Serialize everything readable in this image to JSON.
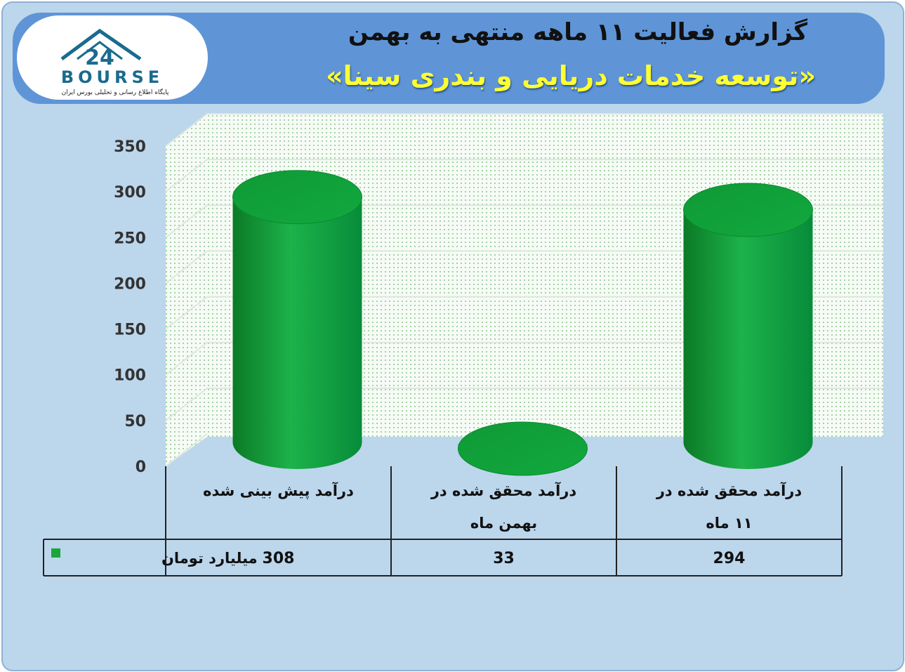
{
  "header": {
    "title_line1": "گزارش فعالیت ۱۱ ماهه منتهی به بهمن",
    "title_line2": "«توسعه خدمات دریایی و بندری سینا»"
  },
  "logo": {
    "wordmark": "BOURSE",
    "number": "24",
    "tagline": "پایگاه اطلاع رسانی و تحلیلی بورس ایران",
    "color": "#1a6b8f"
  },
  "chart_data": {
    "type": "bar",
    "style": "3d-cylinder",
    "categories": [
      {
        "lines": [
          "درآمد پیش بینی شده"
        ]
      },
      {
        "lines": [
          "درآمد محقق شده در",
          "بهمن ماه"
        ]
      },
      {
        "lines": [
          "درآمد محقق شده در",
          "۱۱ ماه"
        ]
      }
    ],
    "series": [
      {
        "name": "میلیارد تومان",
        "values": [
          308,
          33,
          294
        ],
        "color": "#1aa63a"
      }
    ],
    "ylim": [
      0,
      350
    ],
    "yticks": [
      0,
      50,
      100,
      150,
      200,
      250,
      300,
      350
    ],
    "grid": true,
    "legend": "data-table"
  }
}
